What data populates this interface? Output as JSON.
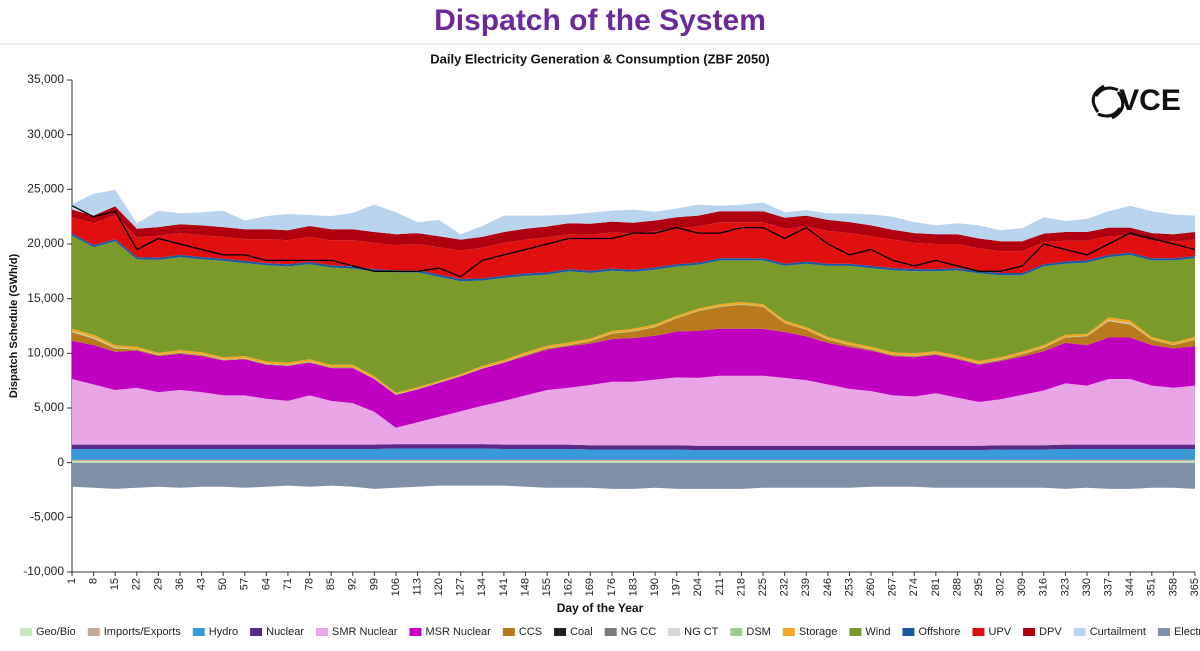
{
  "chart_data": {
    "type": "stacked_area",
    "title": "Dispatch of the System",
    "subtitle": "Daily Electricity Generation & Consumption (ZBF 2050)",
    "logo_text": "VCE",
    "x_label": "Day of the Year",
    "y_label": "Dispatch Schedule (GWh/d)",
    "x": [
      1,
      8,
      15,
      22,
      29,
      36,
      43,
      50,
      57,
      64,
      71,
      78,
      85,
      92,
      99,
      106,
      113,
      120,
      127,
      134,
      141,
      148,
      155,
      162,
      169,
      176,
      183,
      190,
      197,
      204,
      211,
      218,
      225,
      232,
      239,
      246,
      253,
      260,
      267,
      274,
      281,
      288,
      295,
      302,
      309,
      316,
      323,
      330,
      337,
      344,
      351,
      358,
      365
    ],
    "xlim": [
      1,
      365
    ],
    "xticks": [
      1,
      8,
      15,
      22,
      29,
      36,
      43,
      50,
      57,
      64,
      71,
      78,
      85,
      92,
      99,
      106,
      113,
      120,
      127,
      134,
      141,
      148,
      155,
      162,
      169,
      176,
      183,
      190,
      197,
      204,
      211,
      218,
      225,
      232,
      239,
      246,
      253,
      260,
      267,
      274,
      281,
      288,
      295,
      302,
      309,
      316,
      323,
      330,
      337,
      344,
      351,
      358,
      365
    ],
    "ylim": [
      -10000,
      35000
    ],
    "yticks": [
      {
        "value": -10000,
        "label": "-10,000"
      },
      {
        "value": -5000,
        "label": "-5,000"
      },
      0,
      {
        "value": 5000,
        "label": "5,000"
      },
      {
        "value": 10000,
        "label": "10,000"
      },
      {
        "value": 15000,
        "label": "15,000"
      },
      {
        "value": 20000,
        "label": "20,000"
      },
      {
        "value": 25000,
        "label": "25,000"
      },
      {
        "value": 30000,
        "label": "30,000"
      },
      {
        "value": 35000,
        "label": "35,000"
      }
    ],
    "series": [
      {
        "name": "Geo/Bio",
        "color": "#c8e6c0",
        "values": [
          150,
          150,
          150,
          150,
          150,
          150,
          150,
          150,
          150,
          150,
          150,
          150,
          150,
          150,
          150,
          150,
          150,
          150,
          150,
          150,
          150,
          150,
          150,
          150,
          150,
          150,
          150,
          150,
          150,
          150,
          150,
          150,
          150,
          150,
          150,
          150,
          150,
          150,
          150,
          150,
          150,
          150,
          150,
          150,
          150,
          150,
          150,
          150,
          150,
          150,
          150,
          150,
          150
        ]
      },
      {
        "name": "Imports/Exports",
        "color": "#c9a89a",
        "values": [
          100,
          100,
          100,
          100,
          100,
          100,
          100,
          100,
          100,
          100,
          100,
          100,
          100,
          100,
          100,
          100,
          100,
          100,
          100,
          100,
          100,
          100,
          100,
          100,
          100,
          100,
          100,
          100,
          100,
          100,
          100,
          100,
          100,
          100,
          100,
          100,
          100,
          100,
          100,
          100,
          100,
          100,
          100,
          100,
          100,
          100,
          100,
          100,
          100,
          100,
          100,
          100,
          100
        ]
      },
      {
        "name": "Hydro",
        "color": "#3a9ad9",
        "values": [
          1000,
          1000,
          1000,
          1000,
          1000,
          1000,
          1000,
          1000,
          1000,
          1000,
          1000,
          1000,
          1000,
          1000,
          1000,
          1050,
          1050,
          1050,
          1050,
          1050,
          1000,
          1000,
          1000,
          1000,
          950,
          950,
          950,
          950,
          950,
          900,
          900,
          900,
          900,
          900,
          900,
          900,
          900,
          900,
          900,
          900,
          900,
          900,
          900,
          950,
          950,
          950,
          1000,
          1000,
          1000,
          1000,
          1000,
          1000,
          1000
        ]
      },
      {
        "name": "Nuclear",
        "color": "#5b2a86",
        "values": [
          400,
          400,
          400,
          400,
          400,
          400,
          400,
          400,
          400,
          400,
          400,
          400,
          400,
          400,
          400,
          400,
          400,
          400,
          400,
          400,
          400,
          400,
          400,
          400,
          400,
          400,
          400,
          400,
          400,
          400,
          400,
          400,
          400,
          400,
          400,
          400,
          400,
          400,
          400,
          400,
          400,
          400,
          400,
          400,
          400,
          400,
          400,
          400,
          400,
          400,
          400,
          400,
          400
        ]
      },
      {
        "name": "SMR Nuclear",
        "color": "#e9a6e6",
        "values": [
          6000,
          5500,
          5000,
          5200,
          4800,
          5000,
          4800,
          4500,
          4500,
          4200,
          4000,
          4500,
          4000,
          3800,
          3000,
          1500,
          2000,
          2500,
          3000,
          3500,
          4000,
          4500,
          5000,
          5200,
          5500,
          5800,
          5800,
          6000,
          6200,
          6200,
          6400,
          6400,
          6400,
          6200,
          6000,
          5600,
          5200,
          5000,
          4600,
          4500,
          4800,
          4400,
          4000,
          4200,
          4600,
          5000,
          5600,
          5400,
          6000,
          6000,
          5400,
          5200,
          5400
        ]
      },
      {
        "name": "MSR Nuclear",
        "color": "#c000c0",
        "values": [
          3500,
          3600,
          3500,
          3400,
          3300,
          3300,
          3300,
          3200,
          3300,
          3100,
          3200,
          3000,
          3000,
          3200,
          3000,
          3000,
          3000,
          3100,
          3200,
          3400,
          3500,
          3600,
          3700,
          3800,
          3800,
          3900,
          4000,
          4000,
          4200,
          4300,
          4300,
          4300,
          4300,
          4200,
          4000,
          3800,
          3800,
          3700,
          3600,
          3600,
          3500,
          3500,
          3400,
          3500,
          3500,
          3600,
          3700,
          3700,
          3800,
          3800,
          3700,
          3600,
          3600
        ]
      },
      {
        "name": "CCS",
        "color": "#b87a1c",
        "values": [
          800,
          600,
          300,
          100,
          100,
          100,
          100,
          50,
          50,
          50,
          50,
          50,
          50,
          50,
          0,
          0,
          0,
          0,
          0,
          0,
          0,
          100,
          100,
          100,
          200,
          500,
          600,
          800,
          1200,
          1800,
          2000,
          2200,
          2000,
          800,
          600,
          300,
          200,
          100,
          100,
          100,
          100,
          100,
          100,
          100,
          200,
          300,
          500,
          800,
          1500,
          1200,
          500,
          300,
          600
        ]
      },
      {
        "name": "Coal",
        "color": "#222222",
        "values": [
          0,
          0,
          0,
          0,
          0,
          0,
          0,
          0,
          0,
          0,
          0,
          0,
          0,
          0,
          0,
          0,
          0,
          0,
          0,
          0,
          0,
          0,
          0,
          0,
          0,
          0,
          0,
          0,
          0,
          0,
          0,
          0,
          0,
          0,
          0,
          0,
          0,
          0,
          0,
          0,
          0,
          0,
          0,
          0,
          0,
          0,
          0,
          0,
          0,
          0,
          0,
          0,
          0
        ]
      },
      {
        "name": "NG CC",
        "color": "#7a7a7a",
        "values": [
          0,
          0,
          0,
          0,
          0,
          0,
          0,
          0,
          0,
          0,
          0,
          0,
          0,
          0,
          0,
          0,
          0,
          0,
          0,
          0,
          0,
          0,
          0,
          0,
          0,
          0,
          0,
          0,
          0,
          0,
          0,
          0,
          0,
          0,
          0,
          0,
          0,
          0,
          0,
          0,
          0,
          0,
          0,
          0,
          0,
          0,
          0,
          0,
          0,
          0,
          0,
          0,
          0
        ]
      },
      {
        "name": "NG CT",
        "color": "#d6d6d6",
        "values": [
          50,
          50,
          50,
          0,
          0,
          0,
          0,
          0,
          0,
          0,
          0,
          0,
          0,
          0,
          0,
          0,
          0,
          0,
          0,
          0,
          0,
          0,
          0,
          0,
          0,
          0,
          0,
          0,
          0,
          0,
          0,
          0,
          0,
          0,
          0,
          0,
          0,
          0,
          0,
          0,
          0,
          0,
          0,
          0,
          0,
          0,
          0,
          0,
          50,
          50,
          0,
          0,
          0
        ]
      },
      {
        "name": "DSM",
        "color": "#9acd90",
        "values": [
          50,
          50,
          50,
          50,
          50,
          50,
          50,
          50,
          50,
          50,
          50,
          50,
          50,
          50,
          50,
          50,
          50,
          50,
          50,
          50,
          50,
          50,
          50,
          50,
          50,
          50,
          50,
          50,
          50,
          50,
          50,
          50,
          50,
          50,
          50,
          50,
          50,
          50,
          50,
          50,
          50,
          50,
          50,
          50,
          50,
          50,
          50,
          50,
          50,
          50,
          50,
          50,
          50
        ]
      },
      {
        "name": "Storage",
        "color": "#f5a623",
        "values": [
          200,
          250,
          200,
          200,
          150,
          200,
          200,
          200,
          200,
          200,
          200,
          200,
          200,
          200,
          200,
          150,
          150,
          150,
          150,
          200,
          200,
          200,
          200,
          200,
          200,
          200,
          200,
          200,
          200,
          200,
          200,
          200,
          200,
          200,
          200,
          200,
          200,
          200,
          200,
          200,
          200,
          200,
          200,
          200,
          200,
          200,
          200,
          200,
          250,
          250,
          200,
          200,
          200
        ]
      },
      {
        "name": "Wind",
        "color": "#7a9a2a",
        "values": [
          8500,
          8000,
          9500,
          8000,
          8500,
          8500,
          8500,
          8800,
          8500,
          8800,
          8800,
          8700,
          8900,
          8800,
          9600,
          11000,
          10500,
          9500,
          8500,
          7800,
          7500,
          7000,
          6500,
          6500,
          6000,
          5500,
          5200,
          5000,
          4500,
          4000,
          4000,
          3800,
          4000,
          5000,
          5800,
          6500,
          7000,
          7200,
          7500,
          7500,
          7300,
          7800,
          8000,
          7500,
          7000,
          7200,
          6500,
          6500,
          5500,
          6000,
          7000,
          7500,
          7200
        ]
      },
      {
        "name": "Offshore",
        "color": "#1a5aa0",
        "values": [
          200,
          200,
          200,
          200,
          200,
          200,
          200,
          200,
          200,
          200,
          200,
          200,
          200,
          200,
          200,
          200,
          200,
          200,
          200,
          200,
          200,
          200,
          200,
          200,
          200,
          200,
          200,
          200,
          200,
          200,
          200,
          200,
          200,
          200,
          200,
          200,
          200,
          200,
          200,
          200,
          200,
          200,
          200,
          200,
          200,
          200,
          200,
          200,
          200,
          200,
          200,
          200,
          200
        ]
      },
      {
        "name": "UPV",
        "color": "#e01010",
        "values": [
          1500,
          2000,
          2200,
          1800,
          2000,
          2000,
          2000,
          2000,
          2000,
          2200,
          2200,
          2300,
          2300,
          2400,
          2400,
          2300,
          2400,
          2500,
          2600,
          2800,
          3000,
          3100,
          3200,
          3200,
          3300,
          3300,
          3300,
          3300,
          3300,
          3300,
          3300,
          3300,
          3300,
          3200,
          3200,
          3000,
          2800,
          2700,
          2600,
          2400,
          2300,
          2200,
          2100,
          2000,
          2000,
          2000,
          1900,
          1800,
          1700,
          1600,
          1600,
          1500,
          1500
        ]
      },
      {
        "name": "DPV",
        "color": "#b00010",
        "values": [
          700,
          700,
          800,
          800,
          800,
          800,
          900,
          900,
          900,
          900,
          900,
          1000,
          1000,
          1000,
          1000,
          1000,
          1000,
          1000,
          1000,
          1000,
          1000,
          1000,
          1000,
          1000,
          1000,
          1000,
          1000,
          1000,
          1000,
          1000,
          1000,
          1000,
          1000,
          1000,
          1000,
          1000,
          1000,
          1000,
          900,
          900,
          900,
          900,
          900,
          900,
          900,
          800,
          800,
          800,
          800,
          700,
          700,
          700,
          700
        ]
      },
      {
        "name": "Curtailment",
        "color": "#b8d4ee",
        "values": [
          500,
          2000,
          1500,
          500,
          1500,
          1000,
          1200,
          1500,
          800,
          1200,
          1500,
          1000,
          1200,
          1500,
          2500,
          2000,
          1000,
          1500,
          500,
          1000,
          1500,
          1200,
          1000,
          800,
          1000,
          1000,
          1200,
          800,
          800,
          1000,
          500,
          600,
          800,
          500,
          500,
          600,
          800,
          1000,
          1200,
          1000,
          800,
          1000,
          1200,
          1000,
          1200,
          1500,
          1000,
          1200,
          1500,
          2000,
          2000,
          1800,
          1500
        ]
      },
      {
        "name": "Electric Losses",
        "color": "#8090a8",
        "values": [
          -2200,
          -2300,
          -2400,
          -2300,
          -2200,
          -2300,
          -2200,
          -2200,
          -2300,
          -2200,
          -2100,
          -2200,
          -2100,
          -2200,
          -2400,
          -2300,
          -2200,
          -2100,
          -2100,
          -2100,
          -2100,
          -2200,
          -2300,
          -2300,
          -2300,
          -2400,
          -2400,
          -2300,
          -2400,
          -2400,
          -2400,
          -2400,
          -2300,
          -2300,
          -2300,
          -2300,
          -2300,
          -2200,
          -2200,
          -2200,
          -2300,
          -2300,
          -2300,
          -2300,
          -2300,
          -2300,
          -2400,
          -2300,
          -2400,
          -2400,
          -2300,
          -2300,
          -2400
        ]
      },
      {
        "name": "Load",
        "color": "#000000",
        "kind": "line",
        "values": [
          23500,
          22500,
          23000,
          19500,
          20500,
          20000,
          19500,
          19000,
          19000,
          18500,
          18500,
          18500,
          18500,
          18000,
          17500,
          17500,
          17500,
          17800,
          17000,
          18500,
          19000,
          19500,
          20000,
          20500,
          20500,
          20500,
          21000,
          21000,
          21500,
          21000,
          21000,
          21500,
          21500,
          20500,
          21500,
          20000,
          19000,
          19500,
          18500,
          18000,
          18500,
          18000,
          17500,
          17500,
          18000,
          20000,
          19500,
          19000,
          20000,
          21000,
          20500,
          20000,
          19500
        ]
      }
    ]
  }
}
